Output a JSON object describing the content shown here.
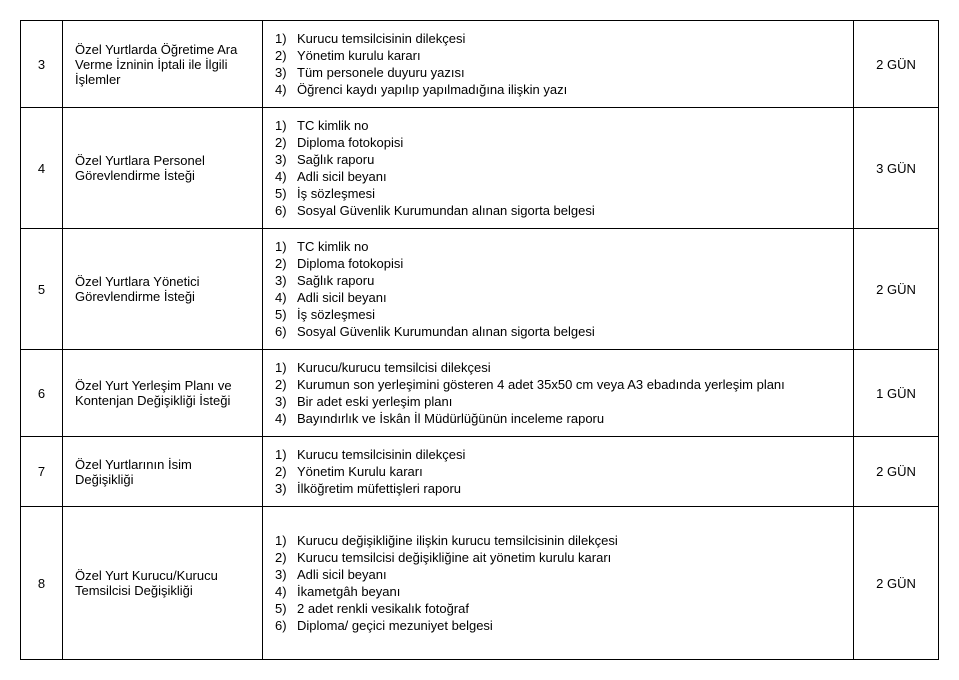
{
  "rows": [
    {
      "num": "3",
      "title": "Özel Yurtlarda Öğretime Ara Verme İzninin İptali ile İlgili İşlemler",
      "items": [
        "Kurucu temsilcisinin dilekçesi",
        "Yönetim kurulu kararı",
        "Tüm personele duyuru yazısı",
        "Öğrenci kaydı yapılıp yapılmadığına ilişkin yazı"
      ],
      "duration": "2 GÜN"
    },
    {
      "num": "4",
      "title": "Özel Yurtlara Personel Görevlendirme İsteği",
      "items": [
        "TC kimlik no",
        "Diploma fotokopisi",
        "Sağlık raporu",
        "Adli sicil beyanı",
        "İş sözleşmesi",
        "Sosyal Güvenlik Kurumundan alınan sigorta belgesi"
      ],
      "duration": "3 GÜN"
    },
    {
      "num": "5",
      "title": "Özel Yurtlara Yönetici Görevlendirme İsteği",
      "items": [
        "TC kimlik no",
        "Diploma fotokopisi",
        "Sağlık raporu",
        "Adli sicil beyanı",
        "İş sözleşmesi",
        "Sosyal Güvenlik Kurumundan alınan sigorta belgesi"
      ],
      "duration": "2 GÜN"
    },
    {
      "num": "6",
      "title": "Özel Yurt Yerleşim Planı ve Kontenjan Değişikliği İsteği",
      "items": [
        "Kurucu/kurucu temsilcisi dilekçesi",
        "Kurumun son yerleşimini gösteren 4 adet 35x50 cm veya A3 ebadında yerleşim planı",
        "Bir adet eski yerleşim planı",
        "Bayındırlık ve İskân İl Müdürlüğünün inceleme raporu"
      ],
      "duration": "1 GÜN"
    },
    {
      "num": "7",
      "title": "Özel Yurtlarının İsim Değişikliği",
      "items": [
        "Kurucu temsilcisinin dilekçesi",
        "Yönetim Kurulu kararı",
        "İlköğretim müfettişleri raporu"
      ],
      "duration": "2 GÜN"
    },
    {
      "num": "8",
      "title": "Özel Yurt Kurucu/Kurucu Temsilcisi Değişikliği",
      "items": [
        "Kurucu değişikliğine ilişkin kurucu temsilcisinin dilekçesi",
        "Kurucu temsilcisi değişikliğine ait yönetim kurulu kararı",
        "Adli sicil beyanı",
        "İkametgâh beyanı",
        "2 adet renkli vesikalık fotoğraf",
        "Diploma/ geçici mezuniyet belgesi"
      ],
      "duration": "2 GÜN",
      "tall": true
    }
  ]
}
